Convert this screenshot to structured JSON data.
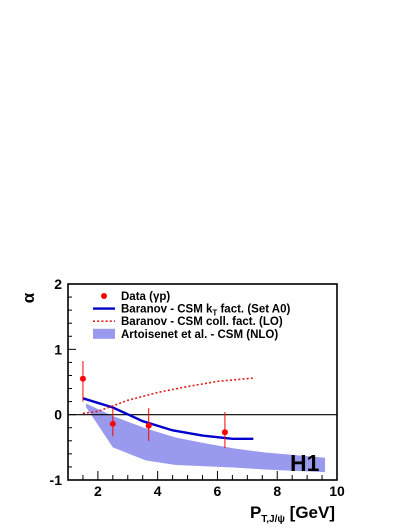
{
  "chart_data": {
    "type": "line",
    "title": "",
    "xlabel": "P_T,J/ψ [GeV]",
    "ylabel": "α",
    "xlim": [
      1,
      10
    ],
    "ylim": [
      -1,
      2
    ],
    "x_ticks": [
      "2",
      "4",
      "6",
      "8",
      "10"
    ],
    "y_ticks": [
      "-1",
      "0",
      "1",
      "2"
    ],
    "badge": "H1",
    "legend_position": "top-left",
    "colors": {
      "data": "#ff0000",
      "kt": "#0000cc",
      "coll": "#e31a1c",
      "band": "#9999ee"
    },
    "legend": [
      {
        "key": "data",
        "label": "Data (γp)"
      },
      {
        "key": "kt",
        "label": "Baranov - CSM k_T fact. (Set A0)"
      },
      {
        "key": "coll",
        "label": "Baranov - CSM coll. fact. (LO)"
      },
      {
        "key": "band",
        "label": "Artoisenet et al. - CSM (NLO)"
      }
    ],
    "data_points": [
      {
        "x": 1.5,
        "y": 0.55,
        "err_low": 0.35,
        "err_high": 0.27
      },
      {
        "x": 2.5,
        "y": -0.14,
        "err_low": 0.19,
        "err_high": 0.24
      },
      {
        "x": 3.7,
        "y": -0.17,
        "err_low": 0.23,
        "err_high": 0.27
      },
      {
        "x": 6.25,
        "y": -0.27,
        "err_low": 0.24,
        "err_high": 0.31
      }
    ],
    "series": [
      {
        "key": "kt",
        "name": "Baranov - CSM k_T fact. (Set A0)",
        "x": [
          1.5,
          2.5,
          3.5,
          4.5,
          5.5,
          6.5,
          7.2
        ],
        "y": [
          0.25,
          0.11,
          -0.1,
          -0.24,
          -0.32,
          -0.37,
          -0.37
        ]
      },
      {
        "key": "coll",
        "name": "Baranov - CSM coll. fact. (LO)",
        "x": [
          1.5,
          2.0,
          3.0,
          4.0,
          5.0,
          6.0,
          7.2
        ],
        "y": [
          0.02,
          0.05,
          0.22,
          0.34,
          0.43,
          0.51,
          0.56
        ]
      }
    ],
    "band": {
      "key": "band",
      "name": "Artoisenet et al. - CSM (NLO)",
      "x": [
        1.6,
        2.5,
        3.6,
        4.6,
        5.6,
        6.6,
        7.6,
        8.6,
        9.6
      ],
      "upper": [
        0.17,
        -0.02,
        -0.21,
        -0.35,
        -0.44,
        -0.52,
        -0.58,
        -0.62,
        -0.66
      ],
      "lower": [
        0.12,
        -0.5,
        -0.7,
        -0.77,
        -0.79,
        -0.81,
        -0.84,
        -0.86,
        -0.88
      ]
    }
  }
}
